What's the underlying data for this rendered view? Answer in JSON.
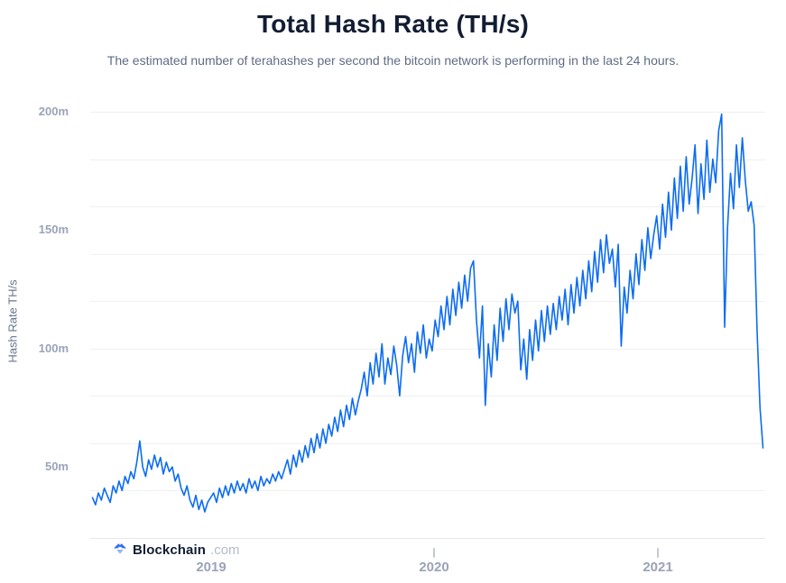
{
  "page": {
    "background": "#ffffff"
  },
  "logo": {
    "brand": "Blockchain",
    "tld": ".com"
  },
  "chart_data": {
    "type": "line",
    "title": "Total Hash Rate (TH/s)",
    "subtitle": "The estimated number of terahashes per second the bitcoin network is performing in the last 24 hours.",
    "ylabel": "Hash Rate TH/s",
    "unit_suffix": "m",
    "line_color": "#0C6CF2",
    "grid_color": "#EEF0F4",
    "axis_text_color": "#9AA3B8",
    "grid": true,
    "legend": "none",
    "ylim": [
      20,
      200
    ],
    "grid_step": 20,
    "yticks": [
      {
        "value": 50,
        "label": "50m"
      },
      {
        "value": 100,
        "label": "100m"
      },
      {
        "value": 150,
        "label": "150m"
      },
      {
        "value": 200,
        "label": "200m"
      }
    ],
    "xticks": [
      {
        "year": "2019",
        "tick_visible": false
      },
      {
        "year": "2020",
        "tick_visible": true
      },
      {
        "year": "2021",
        "tick_visible": true
      }
    ],
    "x_axis_start": 2018.46,
    "x_axis_end": 2021.48,
    "series": [
      {
        "name": "Total Hash Rate (TH/s)",
        "x_start": 2018.47,
        "x_end": 2021.47,
        "values_m": [
          37,
          34,
          39,
          36,
          41,
          38,
          35,
          42,
          39,
          44,
          40,
          46,
          43,
          48,
          45,
          52,
          61,
          50,
          46,
          53,
          49,
          55,
          50,
          54,
          47,
          52,
          48,
          50,
          44,
          47,
          41,
          38,
          42,
          36,
          33,
          38,
          32,
          36,
          31,
          35,
          37,
          39,
          35,
          41,
          37,
          42,
          38,
          43,
          39,
          44,
          40,
          43,
          39,
          45,
          41,
          44,
          40,
          46,
          42,
          45,
          43,
          47,
          44,
          48,
          45,
          49,
          53,
          47,
          55,
          50,
          57,
          52,
          59,
          54,
          62,
          56,
          64,
          58,
          66,
          60,
          68,
          63,
          71,
          65,
          74,
          67,
          76,
          70,
          79,
          72,
          78,
          83,
          90,
          80,
          94,
          85,
          98,
          88,
          102,
          85,
          96,
          89,
          101,
          93,
          80,
          97,
          105,
          94,
          102,
          90,
          107,
          98,
          110,
          96,
          104,
          99,
          112,
          105,
          118,
          108,
          122,
          110,
          125,
          114,
          128,
          117,
          131,
          120,
          134,
          137,
          112,
          96,
          118,
          76,
          102,
          88,
          110,
          95,
          117,
          103,
          121,
          108,
          123,
          115,
          120,
          91,
          104,
          87,
          108,
          95,
          112,
          99,
          116,
          103,
          118,
          106,
          119,
          108,
          122,
          112,
          125,
          110,
          127,
          115,
          130,
          118,
          133,
          121,
          137,
          124,
          141,
          128,
          146,
          132,
          148,
          136,
          142,
          126,
          144,
          101,
          126,
          115,
          133,
          121,
          140,
          127,
          146,
          133,
          151,
          138,
          148,
          156,
          142,
          161,
          147,
          166,
          150,
          172,
          155,
          177,
          158,
          181,
          161,
          172,
          186,
          157,
          178,
          163,
          188,
          166,
          180,
          170,
          192,
          199,
          109,
          151,
          174,
          159,
          186,
          168,
          189,
          171,
          158,
          162,
          152,
          107,
          75,
          58
        ]
      }
    ]
  }
}
